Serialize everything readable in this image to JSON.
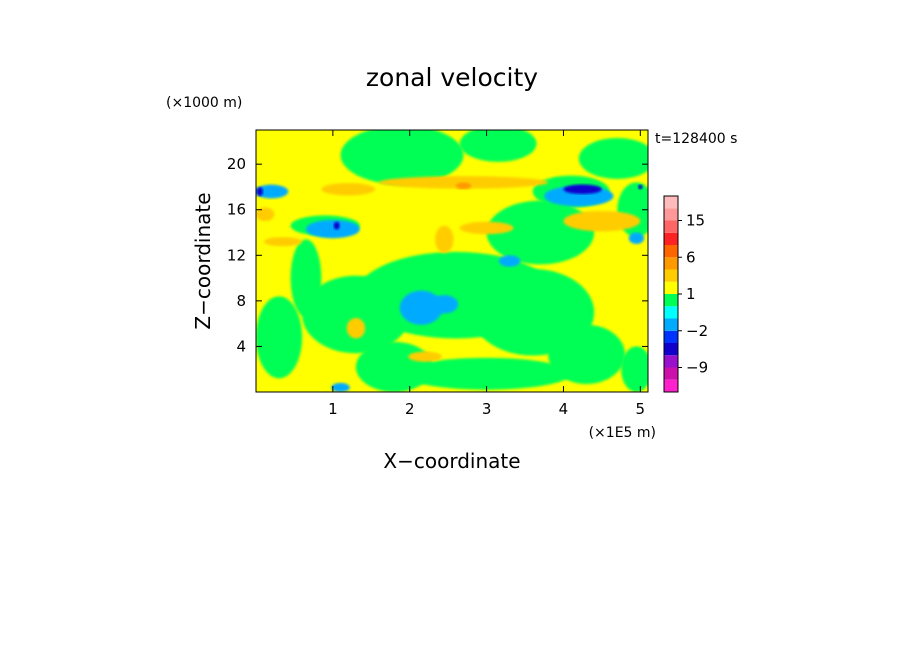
{
  "chart_data": {
    "type": "heatmap",
    "title": "zonal velocity",
    "xlabel": "X−coordinate",
    "ylabel": "Z−coordinate",
    "x_unit": "(×1E5 m)",
    "y_unit": "(×1000 m)",
    "time_label": "t=128400 s",
    "xlim": [
      0,
      5.1
    ],
    "ylim": [
      0,
      23
    ],
    "x_ticks": [
      1,
      2,
      3,
      4,
      5
    ],
    "y_ticks": [
      4,
      8,
      12,
      16,
      20
    ],
    "x_tick_labels": [
      "1",
      "2",
      "3",
      "4",
      "5"
    ],
    "y_tick_labels": [
      "4",
      "8",
      "12",
      "16",
      "20"
    ],
    "grid": false,
    "colorbar": {
      "levels": [
        {
          "lower": -15,
          "color": "#ff22cc"
        },
        {
          "lower": -12,
          "color": "#cc11aa"
        },
        {
          "lower": -9,
          "color": "#9911cc"
        },
        {
          "lower": -6,
          "color": "#1100cc"
        },
        {
          "lower": -4,
          "color": "#0033ff"
        },
        {
          "lower": -2,
          "color": "#00aaff"
        },
        {
          "lower": -1,
          "color": "#00ffff"
        },
        {
          "lower": 0,
          "color": "#00ff55"
        },
        {
          "lower": 1,
          "color": "#ffff00"
        },
        {
          "lower": 2,
          "color": "#ffcc00"
        },
        {
          "lower": 4,
          "color": "#ff9900"
        },
        {
          "lower": 6,
          "color": "#ff6600"
        },
        {
          "lower": 9,
          "color": "#ff2222"
        },
        {
          "lower": 12,
          "color": "#ff6666"
        },
        {
          "lower": 15,
          "color": "#ff9999"
        },
        {
          "lower": 18,
          "color": "#ffbbbb"
        }
      ],
      "tick_labels": [
        "15",
        "6",
        "1",
        "−2",
        "−9"
      ],
      "tick_values": [
        15,
        6,
        1,
        -2,
        -9
      ]
    },
    "background_value": 1.5,
    "regions": [
      {
        "value": 0.5,
        "x": 1.9,
        "z": 20.8,
        "rx": 0.8,
        "rz": 2.6
      },
      {
        "value": 0.5,
        "x": 3.15,
        "z": 21.8,
        "rx": 0.5,
        "rz": 1.6
      },
      {
        "value": 0.5,
        "x": 3.7,
        "z": 14.0,
        "rx": 0.7,
        "rz": 2.8
      },
      {
        "value": 0.5,
        "x": 4.7,
        "z": 20.5,
        "rx": 0.5,
        "rz": 1.8
      },
      {
        "value": 0.5,
        "x": 2.6,
        "z": 8.5,
        "rx": 1.3,
        "rz": 3.8
      },
      {
        "value": 0.5,
        "x": 3.6,
        "z": 7.0,
        "rx": 0.8,
        "rz": 3.8
      },
      {
        "value": 0.5,
        "x": 1.3,
        "z": 6.8,
        "rx": 0.7,
        "rz": 3.4
      },
      {
        "value": 0.5,
        "x": 0.3,
        "z": 4.8,
        "rx": 0.3,
        "rz": 3.6
      },
      {
        "value": 0.5,
        "x": 0.65,
        "z": 10.0,
        "rx": 0.2,
        "rz": 3.4
      },
      {
        "value": 0.5,
        "x": 4.3,
        "z": 3.3,
        "rx": 0.5,
        "rz": 2.6
      },
      {
        "value": 0.5,
        "x": 4.95,
        "z": 2.0,
        "rx": 0.2,
        "rz": 2.0
      },
      {
        "value": 0.5,
        "x": 3.0,
        "z": 1.6,
        "rx": 1.1,
        "rz": 1.4
      },
      {
        "value": 0.5,
        "x": 1.8,
        "z": 2.2,
        "rx": 0.5,
        "rz": 2.2
      },
      {
        "value": 0.5,
        "x": 0.9,
        "z": 14.6,
        "rx": 0.45,
        "rz": 0.9
      },
      {
        "value": 0.5,
        "x": 4.95,
        "z": 16.0,
        "rx": 0.25,
        "rz": 2.4
      },
      {
        "value": 0.5,
        "x": 4.1,
        "z": 17.6,
        "rx": 0.5,
        "rz": 1.4
      },
      {
        "value": 3.0,
        "x": 2.7,
        "z": 18.4,
        "rx": 1.1,
        "rz": 0.55
      },
      {
        "value": 3.0,
        "x": 1.2,
        "z": 17.8,
        "rx": 0.35,
        "rz": 0.55
      },
      {
        "value": 3.0,
        "x": 0.12,
        "z": 15.6,
        "rx": 0.12,
        "rz": 0.6
      },
      {
        "value": 3.0,
        "x": 4.5,
        "z": 15.0,
        "rx": 0.5,
        "rz": 0.9
      },
      {
        "value": 3.0,
        "x": 3.0,
        "z": 14.4,
        "rx": 0.35,
        "rz": 0.55
      },
      {
        "value": 3.0,
        "x": 2.45,
        "z": 13.4,
        "rx": 0.12,
        "rz": 1.2
      },
      {
        "value": 3.0,
        "x": 1.3,
        "z": 5.6,
        "rx": 0.12,
        "rz": 0.9
      },
      {
        "value": 3.0,
        "x": 2.2,
        "z": 3.1,
        "rx": 0.22,
        "rz": 0.45
      },
      {
        "value": 3.0,
        "x": 0.35,
        "z": 13.2,
        "rx": 0.25,
        "rz": 0.4
      },
      {
        "value": 5.0,
        "x": 2.7,
        "z": 18.1,
        "rx": 0.1,
        "rz": 0.3
      },
      {
        "value": -1.5,
        "x": 2.15,
        "z": 7.4,
        "rx": 0.28,
        "rz": 1.5
      },
      {
        "value": -1.5,
        "x": 2.45,
        "z": 7.7,
        "rx": 0.18,
        "rz": 0.8
      },
      {
        "value": -1.5,
        "x": 4.2,
        "z": 17.2,
        "rx": 0.45,
        "rz": 0.9
      },
      {
        "value": -1.5,
        "x": 1.0,
        "z": 14.3,
        "rx": 0.35,
        "rz": 0.8
      },
      {
        "value": -1.5,
        "x": 0.2,
        "z": 17.6,
        "rx": 0.22,
        "rz": 0.6
      },
      {
        "value": -1.5,
        "x": 3.3,
        "z": 11.5,
        "rx": 0.14,
        "rz": 0.5
      },
      {
        "value": -1.5,
        "x": 4.95,
        "z": 13.5,
        "rx": 0.1,
        "rz": 0.5
      },
      {
        "value": -1.5,
        "x": 1.1,
        "z": 0.4,
        "rx": 0.12,
        "rz": 0.4
      },
      {
        "value": -5.0,
        "x": 4.25,
        "z": 17.8,
        "rx": 0.25,
        "rz": 0.42
      },
      {
        "value": -5.0,
        "x": 0.05,
        "z": 17.6,
        "rx": 0.04,
        "rz": 0.4
      },
      {
        "value": -5.0,
        "x": 1.05,
        "z": 14.6,
        "rx": 0.04,
        "rz": 0.35
      },
      {
        "value": -5.0,
        "x": 5.0,
        "z": 18.0,
        "rx": 0.03,
        "rz": 0.2
      }
    ]
  }
}
